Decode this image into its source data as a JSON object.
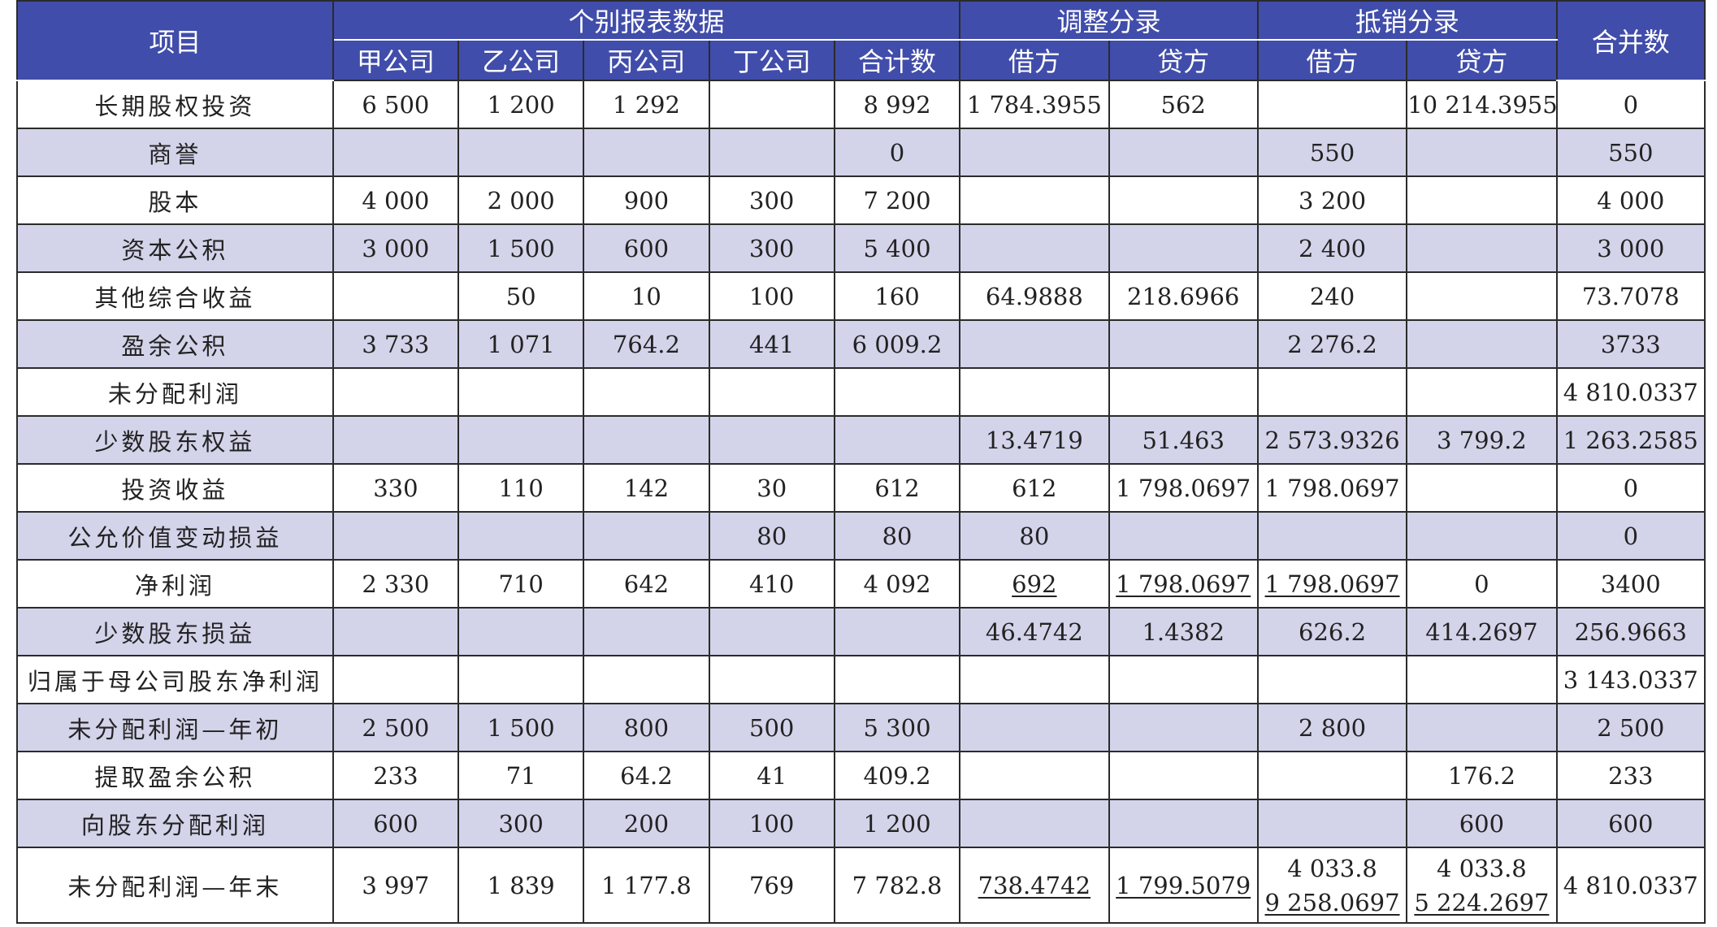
{
  "header": {
    "item": "项目",
    "group_individual": "个别报表数据",
    "group_adjust": "调整分录",
    "group_offset": "抵销分录",
    "consolidated": "合并数",
    "cols": [
      "甲公司",
      "乙公司",
      "丙公司",
      "丁公司",
      "合计数",
      "借方",
      "贷方",
      "借方",
      "贷方"
    ]
  },
  "rows": [
    {
      "label": "长期股权投资",
      "cells": [
        "6 500",
        "1 200",
        "1 292",
        "",
        "8 992",
        "1 784.3955",
        "562",
        "",
        "10 214.3955",
        "0"
      ]
    },
    {
      "label": "商誉",
      "cells": [
        "",
        "",
        "",
        "",
        "0",
        "",
        "",
        "550",
        "",
        "550"
      ]
    },
    {
      "label": "股本",
      "cells": [
        "4 000",
        "2 000",
        "900",
        "300",
        "7 200",
        "",
        "",
        "3 200",
        "",
        "4 000"
      ]
    },
    {
      "label": "资本公积",
      "cells": [
        "3 000",
        "1 500",
        "600",
        "300",
        "5 400",
        "",
        "",
        "2 400",
        "",
        "3 000"
      ]
    },
    {
      "label": "其他综合收益",
      "cells": [
        "",
        "50",
        "10",
        "100",
        "160",
        "64.9888",
        "218.6966",
        "240",
        "",
        "73.7078"
      ]
    },
    {
      "label": "盈余公积",
      "cells": [
        "3 733",
        "1 071",
        "764.2",
        "441",
        "6 009.2",
        "",
        "",
        "2 276.2",
        "",
        "3733"
      ]
    },
    {
      "label": "未分配利润",
      "cells": [
        "",
        "",
        "",
        "",
        "",
        "",
        "",
        "",
        "",
        "4 810.0337"
      ]
    },
    {
      "label": "少数股东权益",
      "cells": [
        "",
        "",
        "",
        "",
        "",
        "13.4719",
        "51.463",
        "2 573.9326",
        "3 799.2",
        "1 263.2585"
      ]
    },
    {
      "label": "投资收益",
      "cells": [
        "330",
        "110",
        "142",
        "30",
        "612",
        "612",
        "1 798.0697",
        "1 798.0697",
        "",
        "0"
      ]
    },
    {
      "label": "公允价值变动损益",
      "cells": [
        "",
        "",
        "",
        "80",
        "80",
        "80",
        "",
        "",
        "",
        "0"
      ]
    },
    {
      "label": "净利润",
      "cells": [
        "2 330",
        "710",
        "642",
        "410",
        "4 092",
        "692",
        "1 798.0697",
        "1 798.0697",
        "0",
        "3400"
      ]
    },
    {
      "label": "少数股东损益",
      "cells": [
        "",
        "",
        "",
        "",
        "",
        "46.4742",
        "1.4382",
        "626.2",
        "414.2697",
        "256.9663"
      ]
    },
    {
      "label": "归属于母公司股东净利润",
      "cells": [
        "",
        "",
        "",
        "",
        "",
        "",
        "",
        "",
        "",
        "3 143.0337"
      ]
    },
    {
      "label": "未分配利润—年初",
      "cells": [
        "2 500",
        "1 500",
        "800",
        "500",
        "5 300",
        "",
        "",
        "2 800",
        "",
        "2 500"
      ]
    },
    {
      "label": "提取盈余公积",
      "cells": [
        "233",
        "71",
        "64.2",
        "41",
        "409.2",
        "",
        "",
        "",
        "176.2",
        "233"
      ]
    },
    {
      "label": "向股东分配利润",
      "cells": [
        "600",
        "300",
        "200",
        "100",
        "1 200",
        "",
        "",
        "",
        "600",
        "600"
      ]
    },
    {
      "label": "未分配利润—年末",
      "cells": [
        "3 997",
        "1 839",
        "1 177.8",
        "769",
        "7 782.8",
        "738.4742",
        "1 799.5079",
        "",
        "",
        "4 810.0337"
      ]
    }
  ],
  "last_row_stacked": {
    "offset_debit": [
      "4 033.8",
      "9 258.0697"
    ],
    "offset_credit": [
      "4 033.8",
      "5 224.2697"
    ]
  },
  "colors": {
    "header_bg": "#414daa",
    "stripe_bg": "#d3d3ea",
    "border": "#2b2b2b"
  }
}
